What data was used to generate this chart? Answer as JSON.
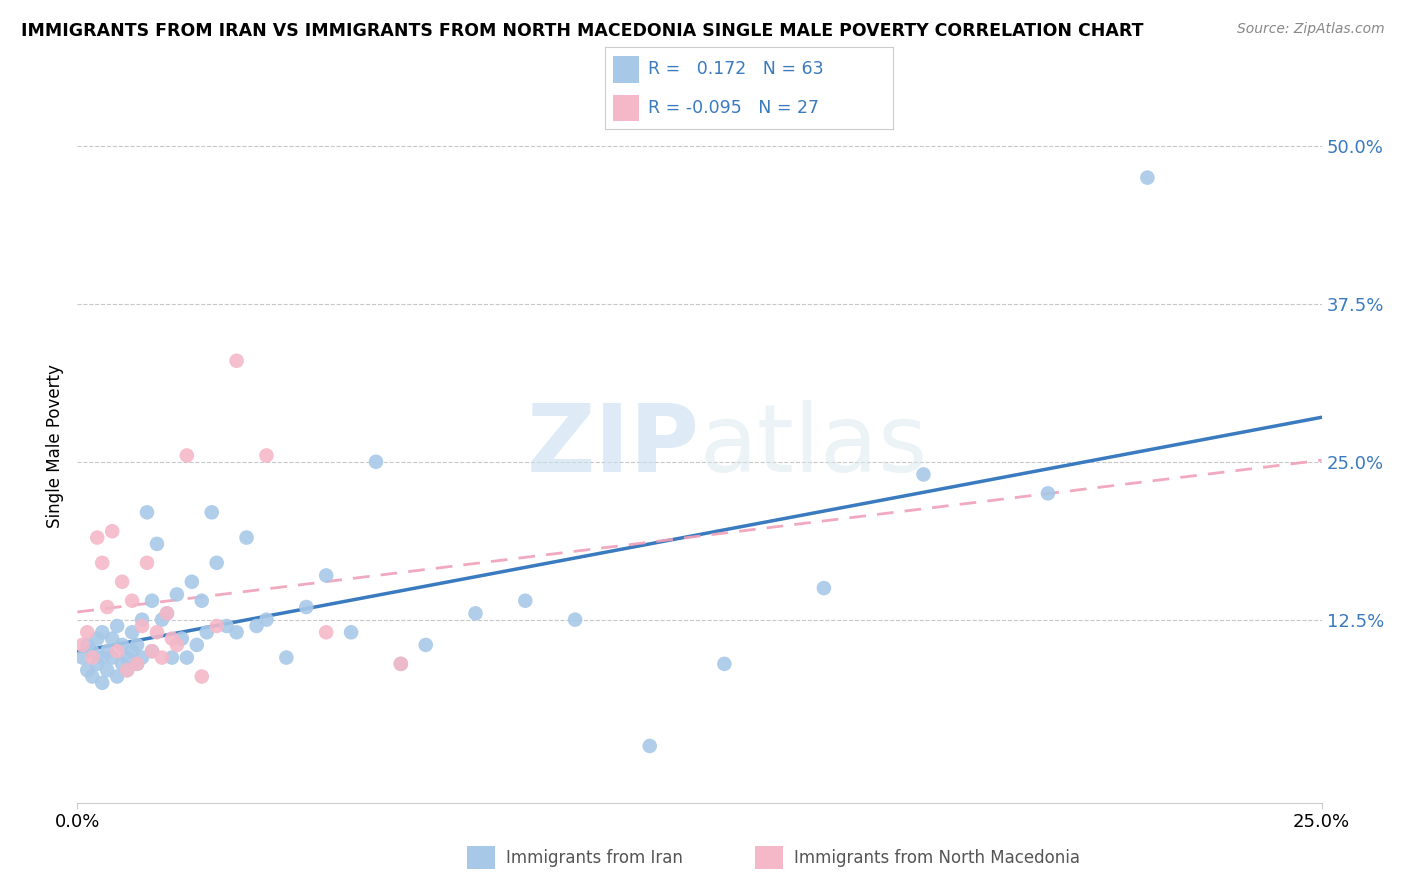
{
  "title": "IMMIGRANTS FROM IRAN VS IMMIGRANTS FROM NORTH MACEDONIA SINGLE MALE POVERTY CORRELATION CHART",
  "source": "Source: ZipAtlas.com",
  "ylabel": "Single Male Poverty",
  "ytick_vals": [
    0.125,
    0.25,
    0.375,
    0.5
  ],
  "ytick_labels": [
    "12.5%",
    "25.0%",
    "37.5%",
    "50.0%"
  ],
  "xlim": [
    0.0,
    0.25
  ],
  "ylim": [
    -0.02,
    0.545
  ],
  "legend_iran_R": " 0.172",
  "legend_iran_N": "63",
  "legend_mac_R": "-0.095",
  "legend_mac_N": "27",
  "iran_color": "#a8c8e8",
  "mac_color": "#f4b8c8",
  "trendline_iran_color": "#3a7abf",
  "trendline_mac_color": "#f0a0b8",
  "watermark_zip": "ZIP",
  "watermark_atlas": "atlas",
  "iran_x": [
    0.001,
    0.002,
    0.002,
    0.003,
    0.003,
    0.004,
    0.004,
    0.005,
    0.005,
    0.005,
    0.006,
    0.006,
    0.007,
    0.007,
    0.008,
    0.008,
    0.009,
    0.009,
    0.01,
    0.01,
    0.011,
    0.011,
    0.012,
    0.012,
    0.013,
    0.013,
    0.014,
    0.015,
    0.015,
    0.016,
    0.017,
    0.018,
    0.019,
    0.02,
    0.021,
    0.022,
    0.023,
    0.024,
    0.025,
    0.026,
    0.027,
    0.028,
    0.03,
    0.032,
    0.034,
    0.036,
    0.038,
    0.042,
    0.046,
    0.05,
    0.055,
    0.06,
    0.065,
    0.07,
    0.08,
    0.09,
    0.1,
    0.115,
    0.13,
    0.15,
    0.17,
    0.195,
    0.215
  ],
  "iran_y": [
    0.095,
    0.105,
    0.085,
    0.08,
    0.1,
    0.11,
    0.09,
    0.075,
    0.095,
    0.115,
    0.085,
    0.1,
    0.095,
    0.11,
    0.08,
    0.12,
    0.09,
    0.105,
    0.085,
    0.095,
    0.1,
    0.115,
    0.105,
    0.09,
    0.125,
    0.095,
    0.21,
    0.14,
    0.1,
    0.185,
    0.125,
    0.13,
    0.095,
    0.145,
    0.11,
    0.095,
    0.155,
    0.105,
    0.14,
    0.115,
    0.21,
    0.17,
    0.12,
    0.115,
    0.19,
    0.12,
    0.125,
    0.095,
    0.135,
    0.16,
    0.115,
    0.25,
    0.09,
    0.105,
    0.13,
    0.14,
    0.125,
    0.025,
    0.09,
    0.15,
    0.24,
    0.225,
    0.475
  ],
  "mac_x": [
    0.001,
    0.002,
    0.003,
    0.004,
    0.005,
    0.006,
    0.007,
    0.008,
    0.009,
    0.01,
    0.011,
    0.012,
    0.013,
    0.014,
    0.015,
    0.016,
    0.017,
    0.018,
    0.019,
    0.02,
    0.022,
    0.025,
    0.028,
    0.032,
    0.038,
    0.05,
    0.065
  ],
  "mac_y": [
    0.105,
    0.115,
    0.095,
    0.19,
    0.17,
    0.135,
    0.195,
    0.1,
    0.155,
    0.085,
    0.14,
    0.09,
    0.12,
    0.17,
    0.1,
    0.115,
    0.095,
    0.13,
    0.11,
    0.105,
    0.255,
    0.08,
    0.12,
    0.33,
    0.255,
    0.115,
    0.09
  ]
}
